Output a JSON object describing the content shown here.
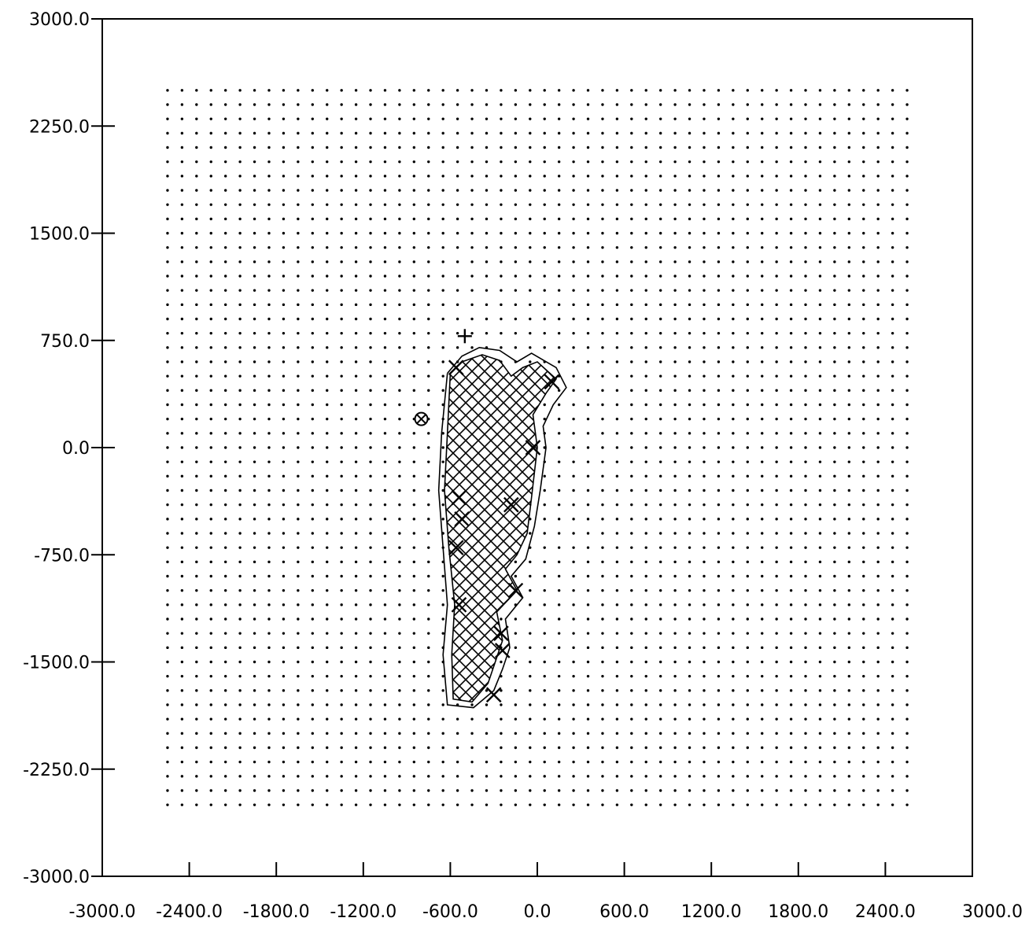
{
  "chart_data": {
    "type": "scatter",
    "title": "",
    "xlabel": "",
    "ylabel": "",
    "xlim": [
      -3000,
      3000
    ],
    "ylim": [
      -3000,
      3000
    ],
    "x_tick_labels": [
      "-3000.0",
      "-2400.0",
      "-1800.0",
      "-1200.0",
      "-600.0",
      "0.0",
      "600.0",
      "1200.0",
      "1800.0",
      "2400.0",
      "3000.0"
    ],
    "x_tick_values": [
      -3000,
      -2400,
      -1800,
      -1200,
      -600,
      0,
      600,
      1200,
      1800,
      2400,
      3000
    ],
    "y_tick_labels": [
      "3000.0",
      "2250.0",
      "1500.0",
      "750.0",
      "0.0",
      "-750.0",
      "-1500.0",
      "-2250.0",
      "-3000.0"
    ],
    "y_tick_values": [
      3000,
      2250,
      1500,
      750,
      0,
      -750,
      -1500,
      -2250,
      -3000
    ],
    "grid": false,
    "colors": {
      "ink": "#000000",
      "background": "#ffffff"
    },
    "series": [
      {
        "kind": "regular-dot-grid",
        "x_start": -2550,
        "x_end": 2550,
        "x_step": 100,
        "y_start": -2500,
        "y_end": 2500,
        "y_step": 100,
        "marker": "dot"
      },
      {
        "kind": "filled-region",
        "hatch": "crosshatch",
        "outline": [
          [
            -600,
            520
          ],
          [
            -520,
            600
          ],
          [
            -380,
            650
          ],
          [
            -260,
            610
          ],
          [
            -180,
            500
          ],
          [
            -100,
            560
          ],
          [
            0,
            600
          ],
          [
            130,
            480
          ],
          [
            60,
            380
          ],
          [
            -30,
            230
          ],
          [
            0,
            0
          ],
          [
            -40,
            -350
          ],
          [
            -70,
            -600
          ],
          [
            -140,
            -750
          ],
          [
            -220,
            -850
          ],
          [
            -140,
            -1000
          ],
          [
            -280,
            -1150
          ],
          [
            -240,
            -1350
          ],
          [
            -290,
            -1500
          ],
          [
            -340,
            -1650
          ],
          [
            -450,
            -1780
          ],
          [
            -580,
            -1760
          ],
          [
            -590,
            -1450
          ],
          [
            -570,
            -1100
          ],
          [
            -610,
            -700
          ],
          [
            -640,
            -300
          ],
          [
            -620,
            100
          ],
          [
            -600,
            520
          ]
        ]
      },
      {
        "kind": "contour-line",
        "points": [
          [
            -620,
            520
          ],
          [
            -520,
            640
          ],
          [
            -400,
            700
          ],
          [
            -260,
            680
          ],
          [
            -140,
            600
          ],
          [
            -40,
            660
          ],
          [
            130,
            560
          ],
          [
            200,
            420
          ],
          [
            110,
            300
          ],
          [
            40,
            150
          ],
          [
            60,
            0
          ],
          [
            20,
            -300
          ],
          [
            -20,
            -550
          ],
          [
            -80,
            -780
          ],
          [
            -180,
            -900
          ],
          [
            -100,
            -1050
          ],
          [
            -220,
            -1200
          ],
          [
            -190,
            -1400
          ],
          [
            -240,
            -1550
          ],
          [
            -300,
            -1700
          ],
          [
            -440,
            -1820
          ],
          [
            -620,
            -1800
          ],
          [
            -650,
            -1450
          ],
          [
            -620,
            -1100
          ],
          [
            -650,
            -700
          ],
          [
            -680,
            -300
          ],
          [
            -660,
            100
          ],
          [
            -620,
            520
          ]
        ]
      },
      {
        "kind": "markers",
        "marker": "x",
        "points": [
          [
            -520,
            -500
          ],
          [
            -560,
            -700
          ],
          [
            -180,
            -400
          ],
          [
            -150,
            -1000
          ],
          [
            -250,
            -1300
          ],
          [
            -240,
            -1420
          ],
          [
            -300,
            -1730
          ],
          [
            -540,
            -1100
          ],
          [
            100,
            460
          ],
          [
            -30,
            0
          ],
          [
            -560,
            560
          ],
          [
            -540,
            -350
          ]
        ]
      },
      {
        "kind": "markers",
        "marker": "plus",
        "points": [
          [
            -500,
            780
          ]
        ]
      },
      {
        "kind": "markers",
        "marker": "circled-x",
        "points": [
          [
            -800,
            200
          ]
        ]
      }
    ]
  }
}
